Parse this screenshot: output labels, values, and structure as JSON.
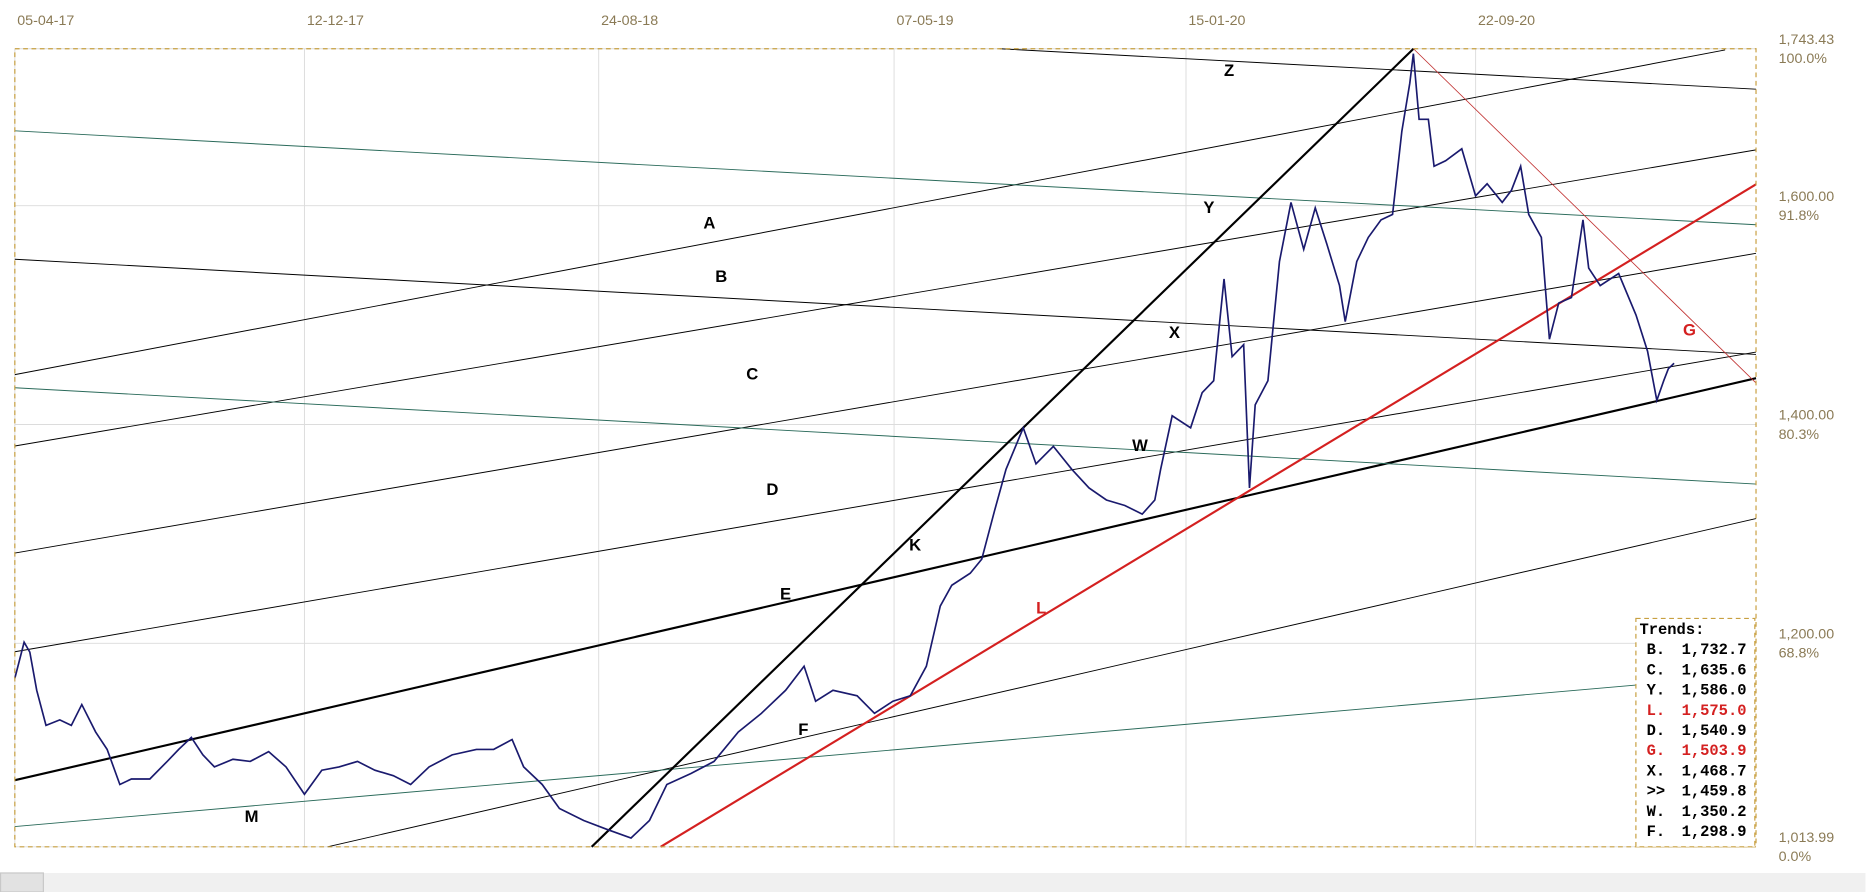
{
  "chart_data": {
    "type": "line",
    "color": "#1a1a6e",
    "xlim": [
      0,
      1509
    ],
    "xticks": [
      {
        "value": 0,
        "label": "05-04-17"
      },
      {
        "value": 251,
        "label": "12-12-17"
      },
      {
        "value": 506,
        "label": "24-08-18"
      },
      {
        "value": 762,
        "label": "07-05-19"
      },
      {
        "value": 1015,
        "label": "15-01-20"
      },
      {
        "value": 1266,
        "label": "22-09-20"
      }
    ],
    "ylim": [
      1013.99,
      1743.43
    ],
    "yticks": [
      {
        "value": 1013.99,
        "label": "1,013.99"
      },
      {
        "value": 1200,
        "label": "1,200.00"
      },
      {
        "value": 1400,
        "label": "1,400.00"
      },
      {
        "value": 1600,
        "label": "1,600.00"
      },
      {
        "value": 1743.43,
        "label": "1,743.43"
      }
    ],
    "ytick_percents": [
      "0.0%",
      "68.8%",
      "80.3%",
      "91.8%",
      "100.0%"
    ],
    "grid": true,
    "x": [
      0,
      8,
      13,
      19,
      27,
      39,
      49,
      58,
      70,
      80,
      91,
      101,
      117,
      132,
      142,
      153,
      163,
      173,
      189,
      204,
      220,
      235,
      251,
      266,
      281,
      297,
      312,
      328,
      343,
      359,
      379,
      400,
      415,
      431,
      441,
      457,
      472,
      493,
      513,
      534,
      550,
      565,
      586,
      606,
      627,
      647,
      668,
      684,
      694,
      709,
      730,
      745,
      761,
      776,
      790,
      802,
      812,
      828,
      838,
      849,
      859,
      874,
      885,
      900,
      916,
      931,
      946,
      962,
      977,
      988,
      993,
      1003,
      1019,
      1029,
      1039,
      1048,
      1055,
      1065,
      1070,
      1075,
      1086,
      1096,
      1106,
      1117,
      1127,
      1137,
      1148,
      1153,
      1163,
      1173,
      1184,
      1194,
      1202,
      1209,
      1212,
      1217,
      1225,
      1230,
      1240,
      1254,
      1266,
      1276,
      1289,
      1297,
      1305,
      1312,
      1323,
      1330,
      1338,
      1349,
      1359,
      1364,
      1374,
      1390,
      1405,
      1415,
      1423,
      1429,
      1433,
      1438
    ],
    "values": [
      1168,
      1201,
      1192,
      1157,
      1125,
      1130,
      1125,
      1144,
      1119,
      1103,
      1071,
      1076,
      1076,
      1092,
      1103,
      1114,
      1098,
      1087,
      1094,
      1092,
      1101,
      1087,
      1062,
      1084,
      1087,
      1092,
      1084,
      1079,
      1071,
      1087,
      1098,
      1103,
      1103,
      1112,
      1087,
      1071,
      1049,
      1038,
      1030,
      1022,
      1038,
      1071,
      1081,
      1092,
      1119,
      1136,
      1157,
      1179,
      1147,
      1157,
      1152,
      1136,
      1147,
      1152,
      1179,
      1234,
      1253,
      1264,
      1277,
      1321,
      1359,
      1397,
      1364,
      1380,
      1359,
      1342,
      1331,
      1326,
      1318,
      1331,
      1359,
      1408,
      1397,
      1429,
      1440,
      1533,
      1462,
      1473,
      1342,
      1418,
      1440,
      1549,
      1603,
      1560,
      1598,
      1565,
      1527,
      1494,
      1549,
      1571,
      1587,
      1592,
      1668,
      1712,
      1739,
      1679,
      1679,
      1636,
      1641,
      1652,
      1609,
      1620,
      1603,
      1614,
      1636,
      1592,
      1571,
      1478,
      1511,
      1516,
      1587,
      1543,
      1527,
      1538,
      1500,
      1467,
      1422,
      1440,
      1451,
      1456
    ],
    "annotations": [
      {
        "text": "A",
        "color": "#000000"
      },
      {
        "text": "B",
        "color": "#000000"
      },
      {
        "text": "C",
        "color": "#000000"
      },
      {
        "text": "D",
        "color": "#000000"
      },
      {
        "text": "E",
        "color": "#000000"
      },
      {
        "text": "F",
        "color": "#000000"
      },
      {
        "text": "K",
        "color": "#000000"
      },
      {
        "text": "L",
        "color": "#d42020"
      },
      {
        "text": "M",
        "color": "#000000"
      },
      {
        "text": "W",
        "color": "#000000"
      },
      {
        "text": "X",
        "color": "#000000"
      },
      {
        "text": "Y",
        "color": "#000000"
      },
      {
        "text": "Z",
        "color": "#000000"
      },
      {
        "text": "G",
        "color": "#d42020"
      }
    ],
    "trends": {
      "title": "Trends:",
      "items": [
        {
          "key": "B.",
          "value": "1,732.7",
          "color": "#000000"
        },
        {
          "key": "C.",
          "value": "1,635.6",
          "color": "#000000"
        },
        {
          "key": "Y.",
          "value": "1,586.0",
          "color": "#000000"
        },
        {
          "key": "L.",
          "value": "1,575.0",
          "color": "#d42020"
        },
        {
          "key": "D.",
          "value": "1,540.9",
          "color": "#000000"
        },
        {
          "key": "G.",
          "value": "1,503.9",
          "color": "#d42020"
        },
        {
          "key": "X.",
          "value": "1,468.7",
          "color": "#000000"
        },
        {
          "key": ">>",
          "value": "1,459.8",
          "color": "#000000"
        },
        {
          "key": "W.",
          "value": "1,350.2",
          "color": "#000000"
        },
        {
          "key": "F.",
          "value": "1,298.9",
          "color": "#000000"
        }
      ]
    }
  }
}
